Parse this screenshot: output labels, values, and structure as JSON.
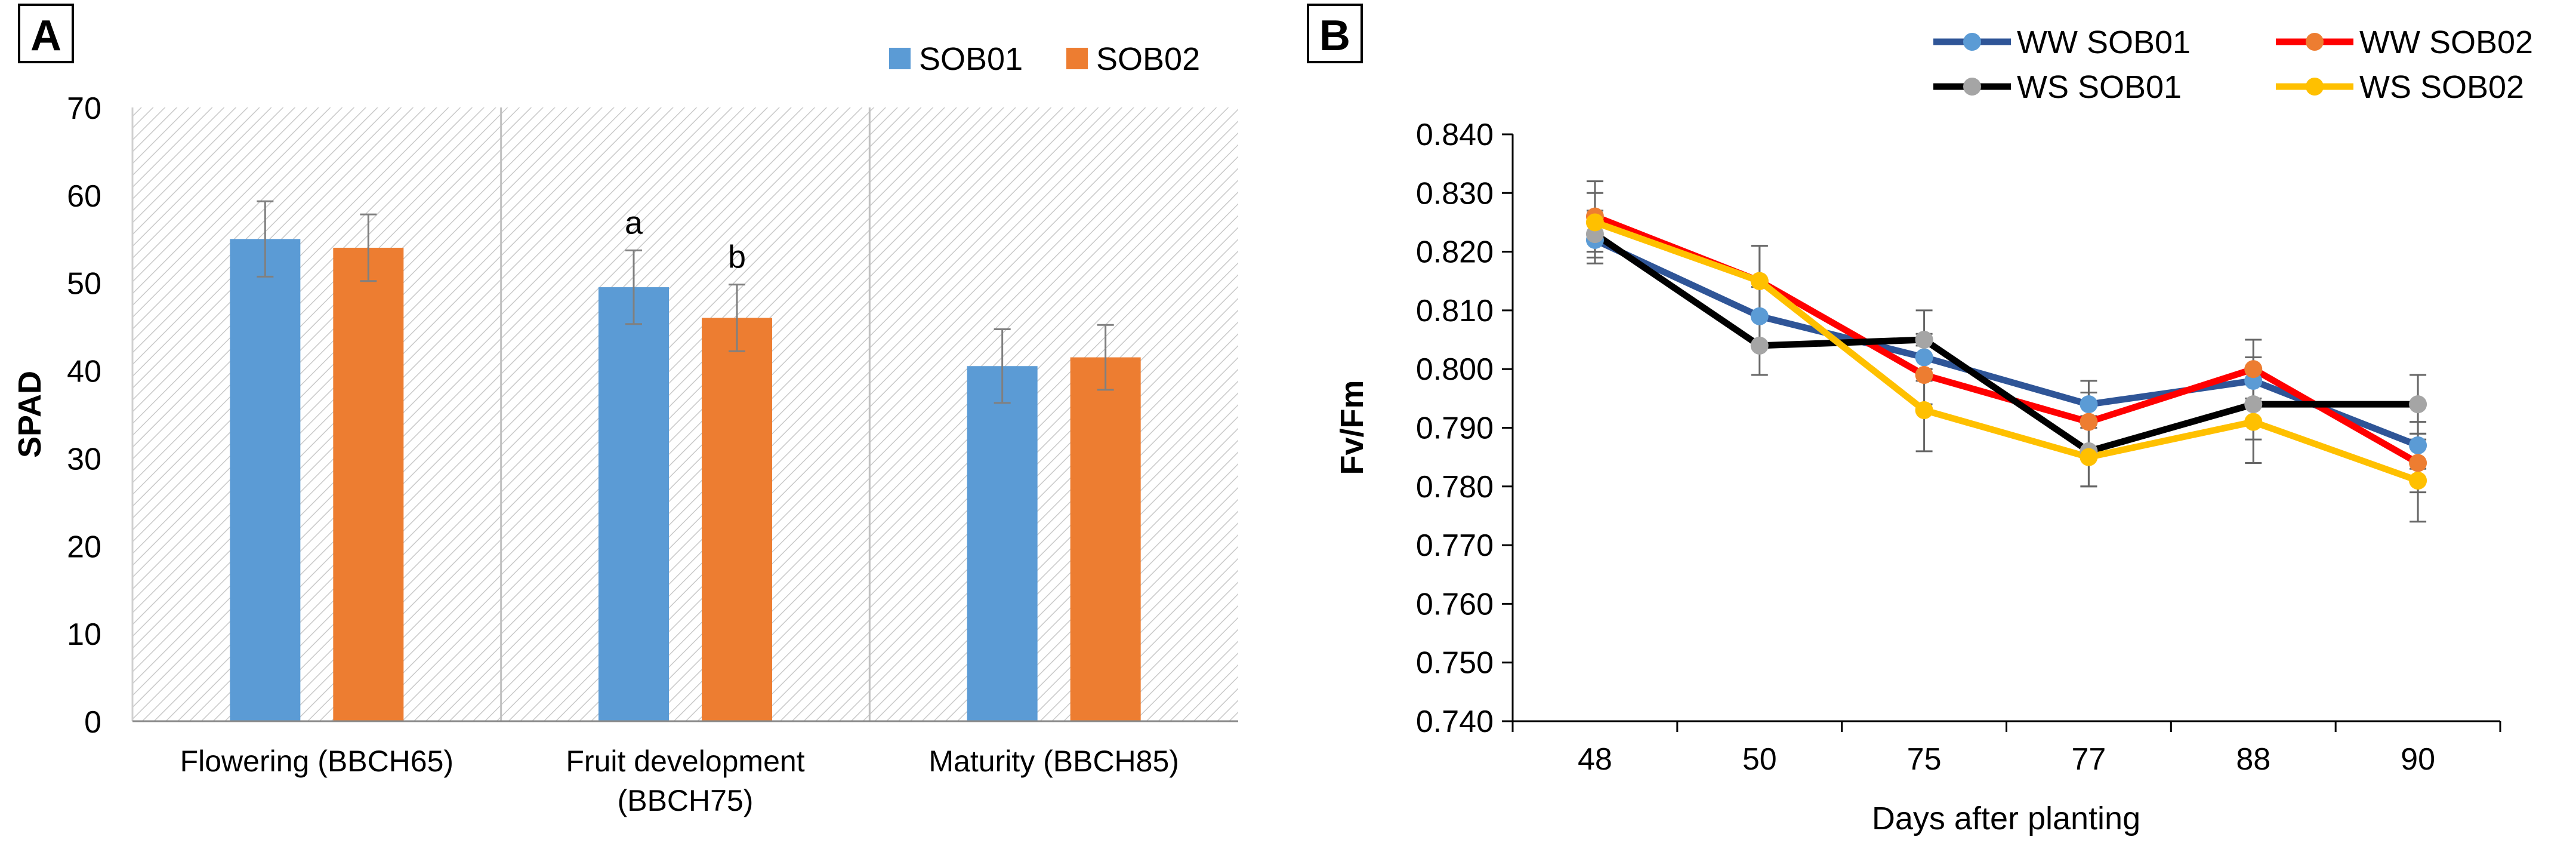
{
  "chart_data": [
    {
      "panel_label": "A",
      "type": "bar",
      "title": "",
      "xlabel": "",
      "ylabel": "SPAD",
      "ylim": [
        0,
        70
      ],
      "yticks": [
        0,
        10,
        20,
        30,
        40,
        50,
        60,
        70
      ],
      "grid": false,
      "legend_position": "top-right",
      "categories": [
        {
          "line1": "Flowering (BBCH65)",
          "line2": ""
        },
        {
          "line1": "Fruit development",
          "line2": "(BBCH75)"
        },
        {
          "line1": "Maturity (BBCH85)",
          "line2": ""
        }
      ],
      "series": [
        {
          "name": "SOB01",
          "color": "#5B9BD5",
          "values": [
            55.0,
            49.5,
            40.5
          ],
          "errors": [
            4.3,
            4.2,
            4.2
          ],
          "annotations": [
            "",
            "a",
            ""
          ]
        },
        {
          "name": "SOB02",
          "color": "#ED7D31",
          "values": [
            54.0,
            46.0,
            41.5
          ],
          "errors": [
            3.8,
            3.8,
            3.7
          ],
          "annotations": [
            "",
            "b",
            ""
          ]
        }
      ]
    },
    {
      "panel_label": "B",
      "type": "line",
      "title": "",
      "xlabel": "Days after planting",
      "ylabel": "Fv/Fm",
      "x": [
        "48",
        "50",
        "75",
        "77",
        "88",
        "90"
      ],
      "ylim": [
        0.74,
        0.84
      ],
      "yticks": [
        "0.740",
        "0.750",
        "0.760",
        "0.770",
        "0.780",
        "0.790",
        "0.800",
        "0.810",
        "0.820",
        "0.830",
        "0.840"
      ],
      "grid": false,
      "legend_position": "top",
      "series": [
        {
          "name": "WW SOB01",
          "line_color": "#2F5597",
          "marker_color": "#5B9BD5",
          "values": [
            0.822,
            0.809,
            0.802,
            0.794,
            0.798,
            0.787
          ],
          "errors": [
            0.004,
            0.005,
            0.004,
            0.004,
            0.004,
            0.004
          ]
        },
        {
          "name": "WW SOB02",
          "line_color": "#FF0000",
          "marker_color": "#ED7D31",
          "values": [
            0.826,
            0.815,
            0.799,
            0.791,
            0.8,
            0.784
          ],
          "errors": [
            0.006,
            0.006,
            0.005,
            0.005,
            0.005,
            0.005
          ]
        },
        {
          "name": "WS SOB01",
          "line_color": "#000000",
          "marker_color": "#A5A5A5",
          "values": [
            0.823,
            0.804,
            0.805,
            0.786,
            0.794,
            0.794
          ],
          "errors": [
            0.004,
            0.005,
            0.005,
            0.006,
            0.006,
            0.005
          ]
        },
        {
          "name": "WS SOB02",
          "line_color": "#FFC000",
          "marker_color": "#FFC000",
          "values": [
            0.825,
            0.815,
            0.793,
            0.785,
            0.791,
            0.781
          ],
          "errors": [
            0.005,
            0.006,
            0.007,
            0.005,
            0.007,
            0.007
          ]
        }
      ]
    }
  ]
}
